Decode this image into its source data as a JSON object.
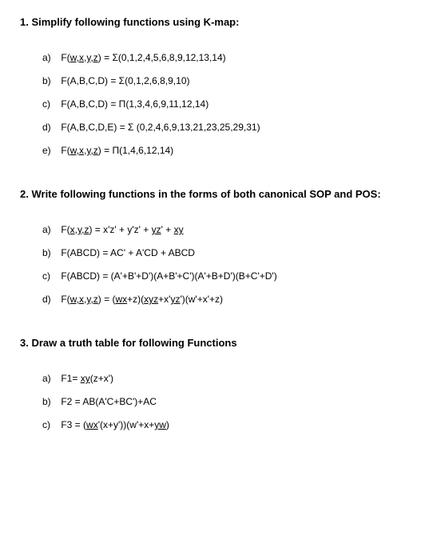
{
  "sections": [
    {
      "number": "1.",
      "title": "Simplify following functions using K-map:"
    },
    {
      "number": "2.",
      "title": "Write following functions in the forms of both  canonical SOP and POS:"
    },
    {
      "number": "3.",
      "title": "Draw a truth table for following Functions"
    }
  ],
  "q1": {
    "a_label": "a)",
    "b_label": "b)",
    "c_label": "c)",
    "d_label": "d)",
    "e_label": "e)",
    "a_pre": "F(",
    "a_mid": "w,x,y,z",
    "a_post": ") = Σ(0,1,2,4,5,6,8,9,12,13,14)",
    "b": "F(A,B,C,D) = Σ(0,1,2,6,8,9,10)",
    "c": "F(A,B,C,D) = Π(1,3,4,6,9,11,12,14)",
    "d": "F(A,B,C,D,E) = Σ (0,2,4,6,9,13,21,23,25,29,31)",
    "e_pre": "F(",
    "e_mid": "w,x,y,z",
    "e_post": ") = Π(1,4,6,12,14)"
  },
  "q2": {
    "a_label": "a)",
    "b_label": "b)",
    "c_label": "c)",
    "d_label": "d)",
    "a_pre": "F(",
    "a_mid": "x,y,z",
    "a_post1": ") = x'z' + y'z' + ",
    "a_u1": "yz",
    "a_post2": "' + ",
    "a_u2": "xy",
    "b": "F(ABCD) = AC'  + A'CD + ABCD",
    "c": "F(ABCD) = (A'+B'+D')(A+B'+C')(A'+B+D')(B+C'+D')",
    "d_pre": "F(",
    "d_mid": "w,x,y,z",
    "d_post1": ") = (",
    "d_u1": "wx",
    "d_post2": "+z)(",
    "d_u2": "xyz",
    "d_post3": "+x'",
    "d_u3": "yz",
    "d_post4": "')(w'+x'+z)"
  },
  "q3": {
    "a_label": "a)",
    "b_label": "b)",
    "c_label": "c)",
    "a_pre": "F1= ",
    "a_u": "xy",
    "a_post": "(z+x')",
    "b": "F2 = AB(A'C+BC')+AC",
    "c_pre": "F3 = (",
    "c_u1": "wx",
    "c_post1": "'(x+y'))(w'+x+",
    "c_u2": "yw",
    "c_post2": ")"
  }
}
